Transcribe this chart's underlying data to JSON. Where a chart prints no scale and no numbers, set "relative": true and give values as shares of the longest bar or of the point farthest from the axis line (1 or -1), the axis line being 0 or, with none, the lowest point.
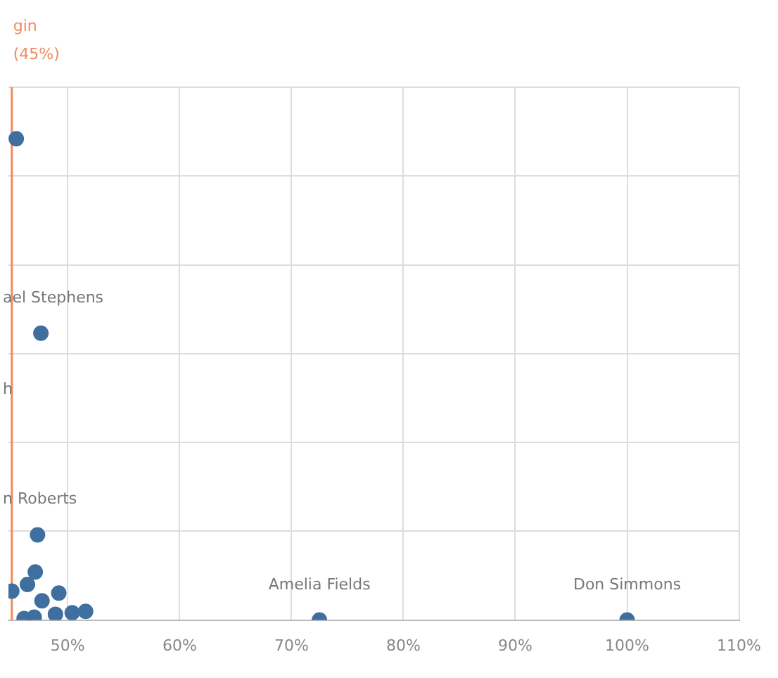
{
  "chart_data": {
    "type": "scatter",
    "relative": true,
    "x": [
      45.4,
      47.6,
      47.3,
      47.1,
      46.4,
      45.0,
      47.7,
      49.2,
      48.9,
      50.4,
      51.6,
      46.1,
      47.0,
      72.5,
      100
    ],
    "values": [
      1,
      0.596,
      0.177,
      0.1,
      0.074,
      0.06,
      0.04,
      0.056,
      0.012,
      0.015,
      0.018,
      0.003,
      0.006,
      0,
      0
    ],
    "color": "#3f6f9f",
    "marker": "circle",
    "xlim": [
      44.7,
      110
    ],
    "xticks": [
      {
        "value": 50,
        "label": "50%"
      },
      {
        "value": 60,
        "label": "60%"
      },
      {
        "value": 70,
        "label": "70%"
      },
      {
        "value": 80,
        "label": "80%"
      },
      {
        "value": 90,
        "label": "90%"
      },
      {
        "value": 100,
        "label": "100%"
      },
      {
        "value": 110,
        "label": "110%"
      }
    ],
    "grid": true,
    "legend": false,
    "ref_lines": [
      {
        "axis": "x",
        "value": 45,
        "label": "gin (45%)",
        "color": "#f08a5d"
      }
    ],
    "annotations": [
      {
        "text": "ael Stephens",
        "x": 47.6,
        "y": 0.596
      },
      {
        "text": "n Roberts",
        "x": 47.3,
        "y": 0.177
      },
      {
        "text": "Amelia Fields",
        "x": 72.5,
        "y": 0
      },
      {
        "text": "Don Simmons",
        "x": 100,
        "y": 0
      },
      "h"
    ]
  }
}
